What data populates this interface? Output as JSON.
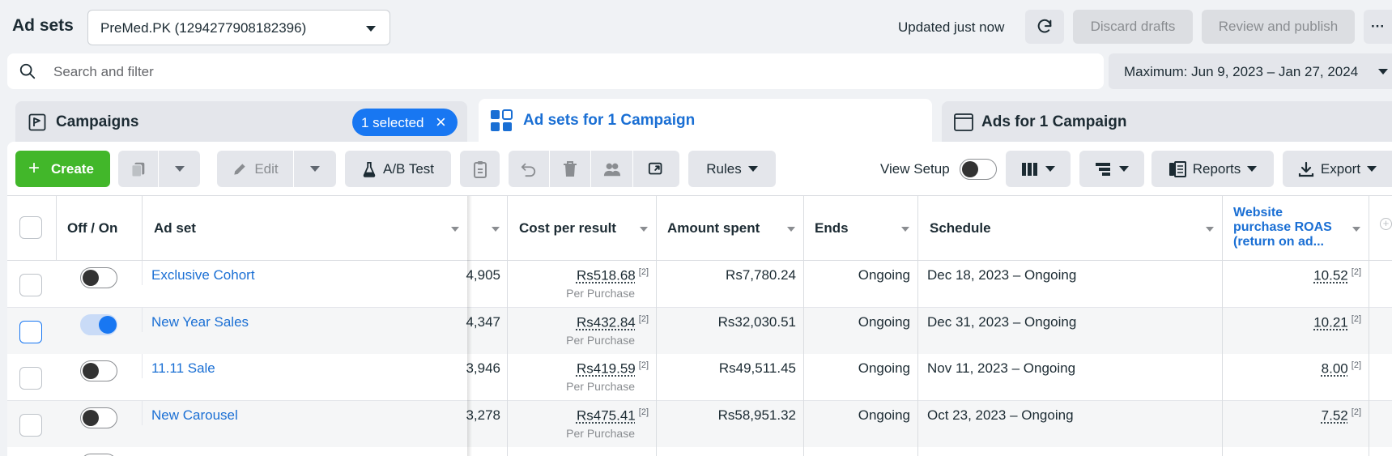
{
  "header": {
    "title": "Ad sets",
    "account": "PreMed.PK (1294277908182396)",
    "updated": "Updated just now",
    "discard": "Discard drafts",
    "review": "Review and publish",
    "more": "···"
  },
  "search": {
    "placeholder": "Search and filter",
    "date_range": "Maximum: Jun 9, 2023 – Jan 27, 2024"
  },
  "tabs": {
    "campaigns": "Campaigns",
    "selected": "1 selected",
    "adsets": "Ad sets for 1 Campaign",
    "ads": "Ads for 1 Campaign"
  },
  "toolbar": {
    "create": "Create",
    "edit": "Edit",
    "abtest": "A/B Test",
    "rules": "Rules",
    "view_setup": "View Setup",
    "reports": "Reports",
    "export": "Export"
  },
  "table": {
    "columns": {
      "offon": "Off / On",
      "adset": "Ad set",
      "cpr": "Cost per result",
      "spent": "Amount spent",
      "ends": "Ends",
      "schedule": "Schedule",
      "roas": "Website purchase ROAS (return on ad..."
    },
    "rows": [
      {
        "on": false,
        "name": "Exclusive Cohort",
        "results": "4,905",
        "cpr": "Rs518.68",
        "cpr_note": "[2]",
        "cpr_sub": "Per Purchase",
        "spent": "Rs7,780.24",
        "ends": "Ongoing",
        "schedule": "Dec 18, 2023 – Ongoing",
        "roas": "10.52",
        "roas_note": "[2]"
      },
      {
        "on": true,
        "name": "New Year Sales",
        "results": "4,347",
        "cpr": "Rs432.84",
        "cpr_note": "[2]",
        "cpr_sub": "Per Purchase",
        "spent": "Rs32,030.51",
        "ends": "Ongoing",
        "schedule": "Dec 31, 2023 – Ongoing",
        "roas": "10.21",
        "roas_note": "[2]"
      },
      {
        "on": false,
        "name": "11.11 Sale",
        "results": "3,946",
        "cpr": "Rs419.59",
        "cpr_note": "[2]",
        "cpr_sub": "Per Purchase",
        "spent": "Rs49,511.45",
        "ends": "Ongoing",
        "schedule": "Nov 11, 2023 – Ongoing",
        "roas": "8.00",
        "roas_note": "[2]"
      },
      {
        "on": false,
        "name": "New Carousel",
        "results": "3,278",
        "cpr": "Rs475.41",
        "cpr_note": "[2]",
        "cpr_sub": "Per Purchase",
        "spent": "Rs58,951.32",
        "ends": "Ongoing",
        "schedule": "Oct 23, 2023 – Ongoing",
        "roas": "7.52",
        "roas_note": "[2]"
      }
    ]
  },
  "colors": {
    "accent": "#1877f2",
    "create": "#42b72a",
    "link": "#1a6fd4"
  }
}
